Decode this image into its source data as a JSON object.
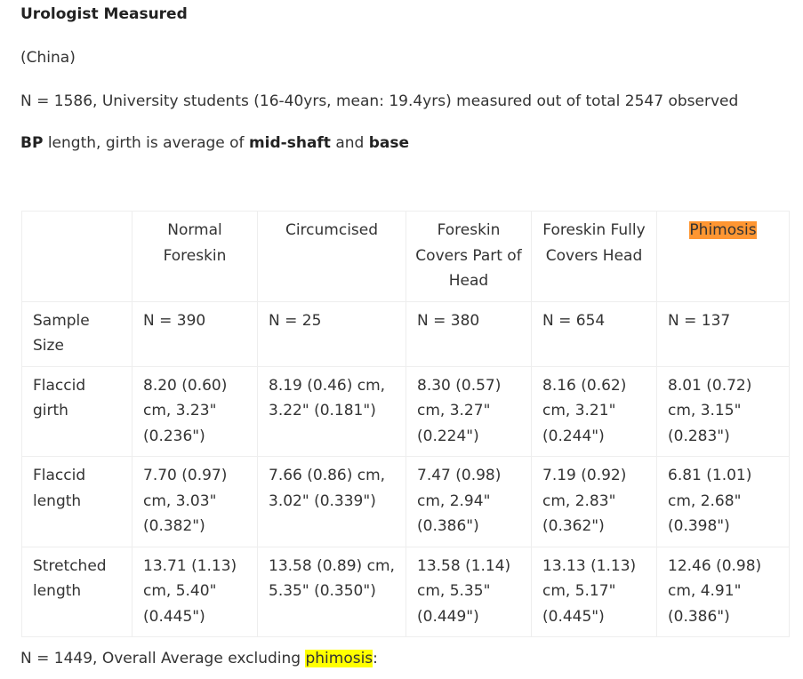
{
  "title": "Urologist Measured",
  "country": "(China)",
  "sample_line": "N = 1586, University students (16-40yrs, mean: 19.4yrs) measured out of total 2547 observed",
  "method_line": {
    "p1": "BP",
    "p2": " length, girth is average of ",
    "p3": "mid-shaft",
    "p4": " and ",
    "p5": "base"
  },
  "table": {
    "headers": [
      "",
      "Normal Foreskin",
      "Circumcised",
      "Foreskin Covers Part of Head",
      "Foreskin Fully Covers Head",
      "Phimosis"
    ],
    "rows": [
      {
        "label": "Sample Size",
        "cells": [
          "N = 390",
          "N = 25",
          "N = 380",
          "N = 654",
          "N = 137"
        ]
      },
      {
        "label": "Flaccid girth",
        "cells": [
          "8.20 (0.60) cm, 3.23\" (0.236\")",
          "8.19 (0.46) cm, 3.22\" (0.181\")",
          "8.30 (0.57) cm, 3.27\" (0.224\")",
          "8.16 (0.62) cm, 3.21\" (0.244\")",
          "8.01 (0.72) cm, 3.15\" (0.283\")"
        ]
      },
      {
        "label": "Flaccid length",
        "cells": [
          "7.70 (0.97) cm, 3.03\" (0.382\")",
          "7.66 (0.86) cm, 3.02\" (0.339\")",
          "7.47 (0.98) cm, 2.94\" (0.386\")",
          "7.19 (0.92) cm, 2.83\" (0.362\")",
          "6.81 (1.01) cm, 2.68\" (0.398\")"
        ]
      },
      {
        "label": "Stretched length",
        "cells": [
          "13.71 (1.13) cm, 5.40\" (0.445\")",
          "13.58 (0.89) cm, 5.35\" (0.350\")",
          "13.58 (1.14) cm, 5.35\" (0.449\")",
          "13.13 (1.13) cm, 5.17\" (0.445\")",
          "12.46 (0.98) cm, 4.91\" (0.386\")"
        ]
      }
    ]
  },
  "footer_line": {
    "prefix": "N = 1449, Overall Average excluding ",
    "highlight": "phimosis",
    "suffix": ":"
  },
  "colors": {
    "highlight_orange": "#ff9632",
    "highlight_yellow": "#ffff00"
  }
}
